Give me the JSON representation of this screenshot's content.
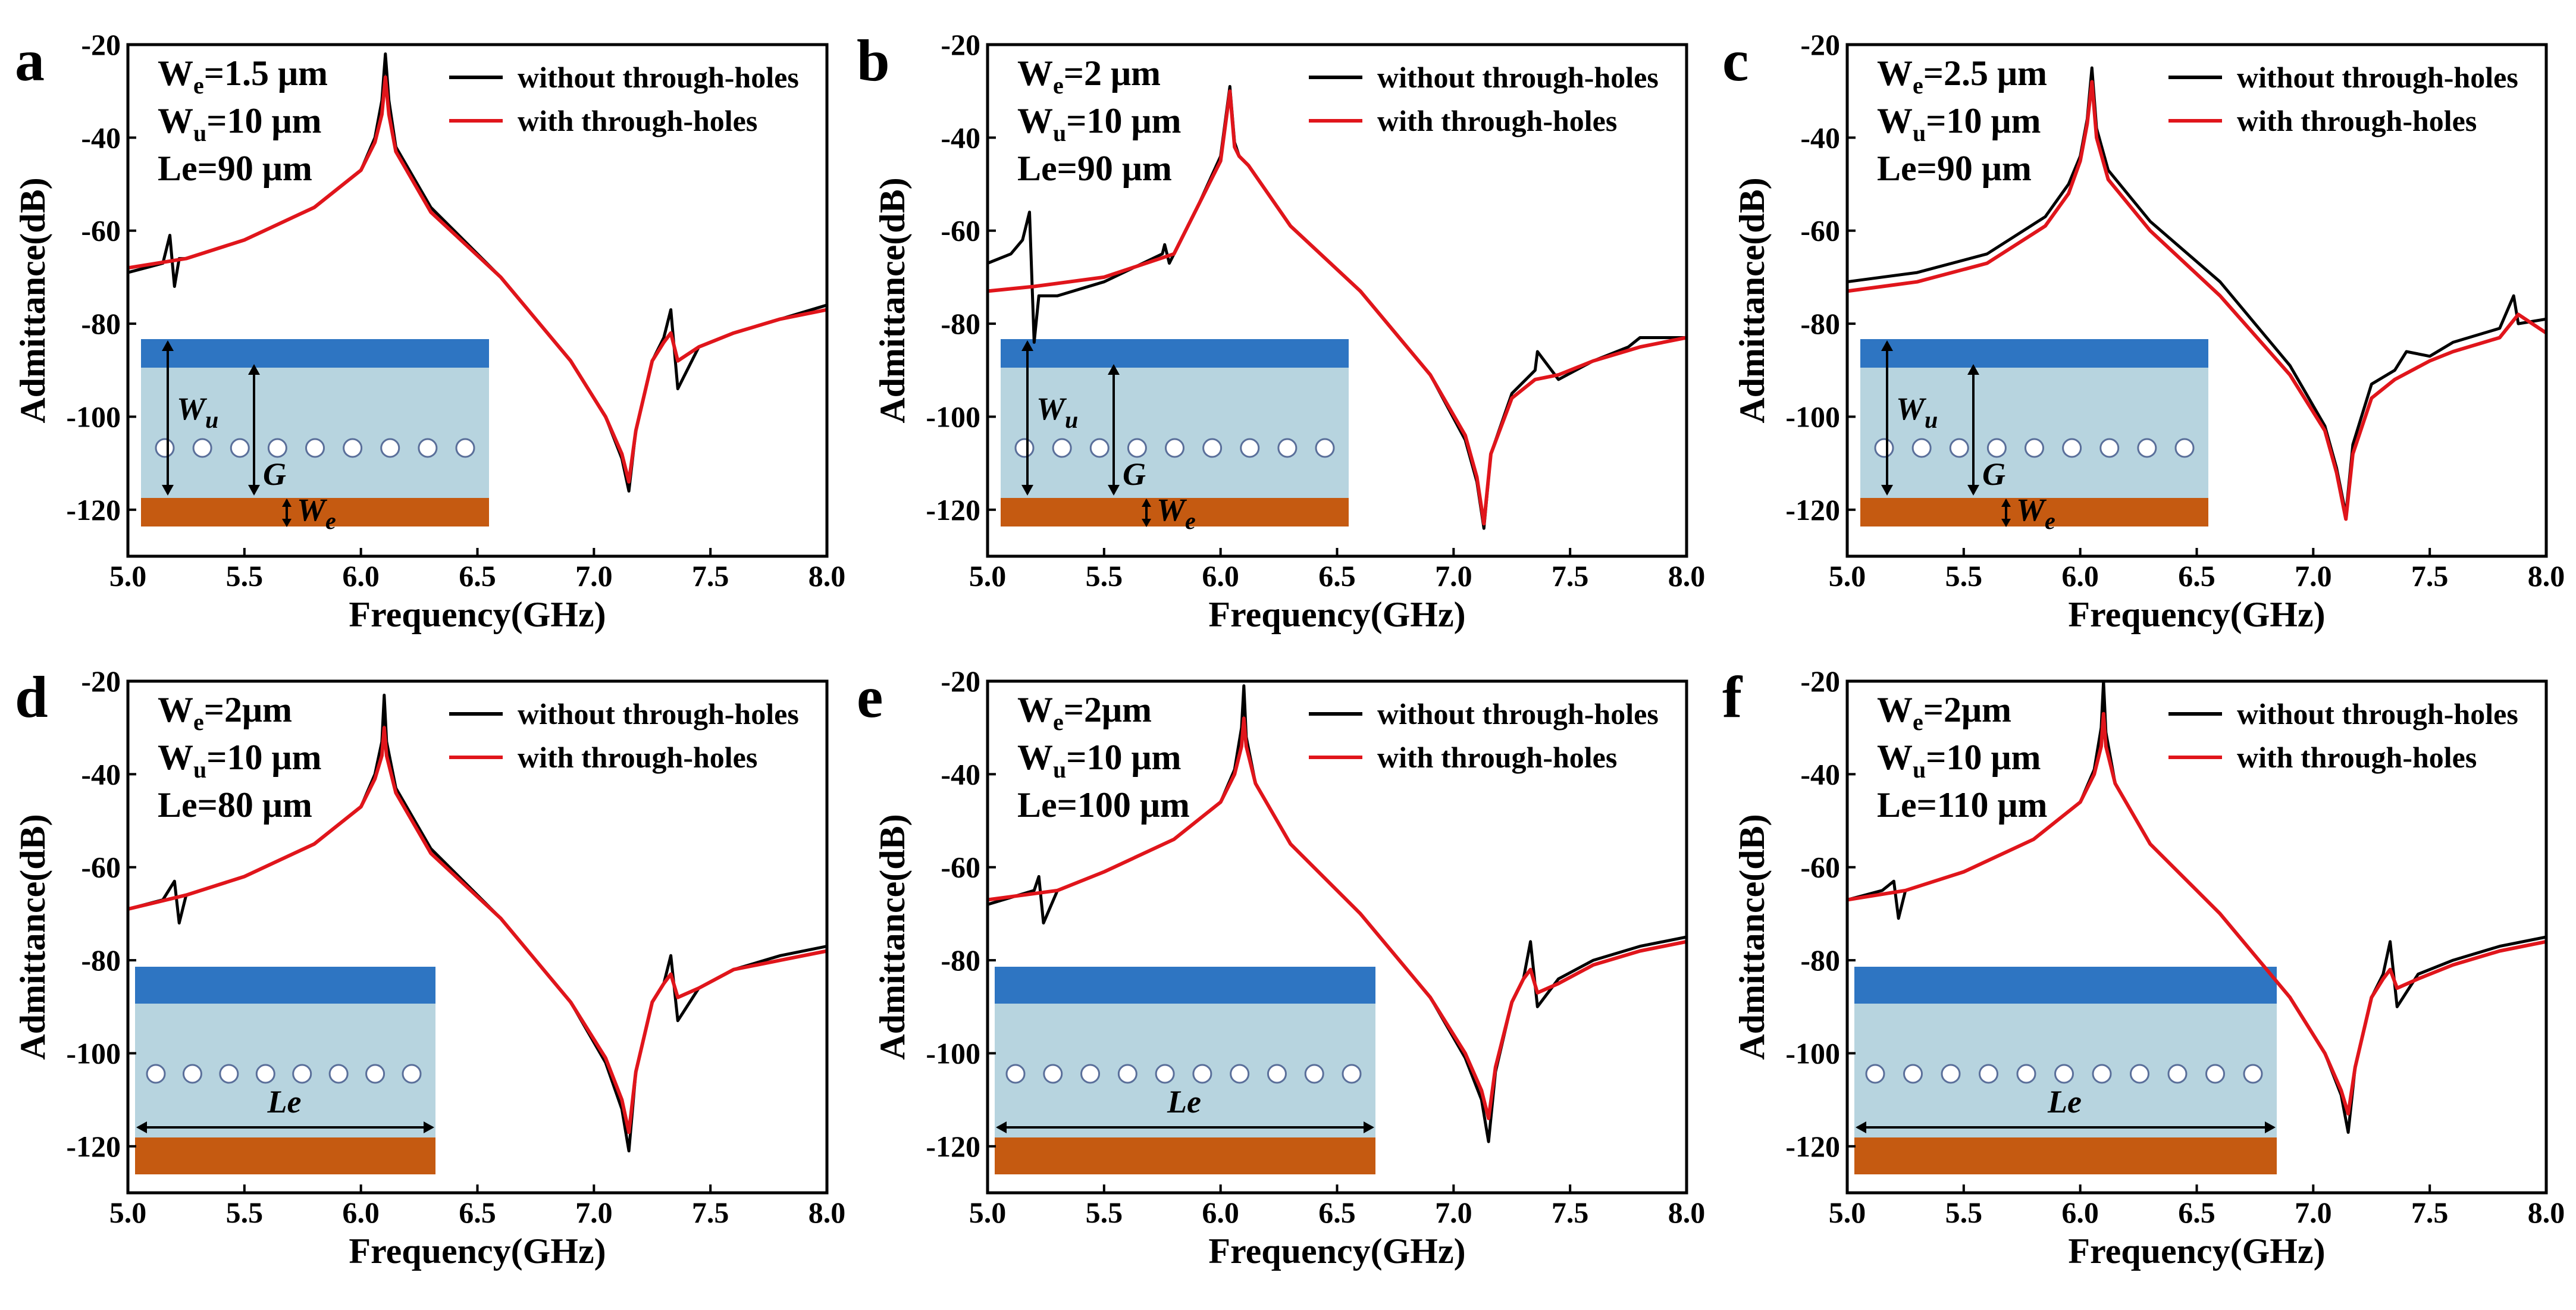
{
  "colors": {
    "without": "#000000",
    "with": "#e0151b",
    "electrode_top": "#2e75c2",
    "substrate": "#b7d4df",
    "electrode_bottom": "#c55a11",
    "hole_stroke": "#5a6f9a"
  },
  "legend": {
    "without": "without through-holes",
    "with": "with through-holes"
  },
  "axis": {
    "xlabel": "Frequency(GHz)",
    "ylabel": "Admittance(dB)",
    "xticks": [
      "5.0",
      "5.5",
      "6.0",
      "6.5",
      "7.0",
      "7.5",
      "8.0"
    ],
    "yticks": [
      "-20",
      "-40",
      "-60",
      "-80",
      "-100",
      "-120"
    ]
  },
  "chart_data": [
    {
      "label": "a",
      "type": "line",
      "params": [
        {
          "name": "W",
          "sub": "e",
          "value": "=1.5 μm"
        },
        {
          "name": "W",
          "sub": "u",
          "value": "=10 μm"
        },
        {
          "name": "Le",
          "sub": "",
          "value": "=90 μm"
        }
      ],
      "xlim": [
        5.0,
        8.0
      ],
      "ylim": [
        -130,
        -20
      ],
      "inset": {
        "kind": "width",
        "wu_label": "W",
        "wu_sub": "u",
        "g_label": "G",
        "we_label": "W",
        "we_sub": "e",
        "holes": 9
      },
      "series": [
        {
          "name": "without through-holes",
          "x": [
            5.0,
            5.15,
            5.18,
            5.2,
            5.22,
            5.25,
            5.5,
            5.8,
            6.0,
            6.06,
            6.09,
            6.105,
            6.12,
            6.15,
            6.3,
            6.6,
            6.9,
            7.05,
            7.12,
            7.15,
            7.18,
            7.25,
            7.3,
            7.33,
            7.36,
            7.45,
            7.6,
            7.8,
            8.0
          ],
          "y": [
            -69,
            -67,
            -61,
            -72,
            -66,
            -66,
            -62,
            -55,
            -47,
            -40,
            -32,
            -22,
            -32,
            -42,
            -55,
            -70,
            -88,
            -100,
            -109,
            -116,
            -103,
            -88,
            -83,
            -77,
            -94,
            -85,
            -82,
            -79,
            -76
          ]
        },
        {
          "name": "with through-holes",
          "x": [
            5.0,
            5.25,
            5.5,
            5.8,
            6.0,
            6.06,
            6.09,
            6.105,
            6.12,
            6.15,
            6.3,
            6.6,
            6.9,
            7.05,
            7.12,
            7.15,
            7.18,
            7.25,
            7.3,
            7.33,
            7.36,
            7.45,
            7.6,
            7.8,
            8.0
          ],
          "y": [
            -68,
            -66,
            -62,
            -55,
            -47,
            -41,
            -35,
            -27,
            -35,
            -43,
            -56,
            -70,
            -88,
            -100,
            -108,
            -114,
            -103,
            -88,
            -84,
            -82,
            -88,
            -85,
            -82,
            -79,
            -77
          ]
        }
      ]
    },
    {
      "label": "b",
      "type": "line",
      "params": [
        {
          "name": "W",
          "sub": "e",
          "value": "=2 μm"
        },
        {
          "name": "W",
          "sub": "u",
          "value": "=10 μm"
        },
        {
          "name": "Le",
          "sub": "",
          "value": "=90 μm"
        }
      ],
      "xlim": [
        5.0,
        8.0
      ],
      "ylim": [
        -130,
        -20
      ],
      "inset": {
        "kind": "width",
        "wu_label": "W",
        "wu_sub": "u",
        "g_label": "G",
        "we_label": "W",
        "we_sub": "e",
        "holes": 9
      },
      "series": [
        {
          "name": "without through-holes",
          "x": [
            5.0,
            5.1,
            5.15,
            5.17,
            5.18,
            5.2,
            5.22,
            5.3,
            5.5,
            5.75,
            5.76,
            5.78,
            5.9,
            6.0,
            6.04,
            6.06,
            6.08,
            6.12,
            6.3,
            6.6,
            6.9,
            7.05,
            7.1,
            7.13,
            7.16,
            7.25,
            7.35,
            7.36,
            7.45,
            7.6,
            7.75,
            7.8,
            8.0
          ],
          "y": [
            -67,
            -65,
            -62,
            -58,
            -56,
            -84,
            -74,
            -74,
            -71,
            -65,
            -63,
            -67,
            -55,
            -44,
            -29,
            -41,
            -44,
            -46,
            -59,
            -73,
            -91,
            -105,
            -114,
            -124,
            -108,
            -95,
            -90,
            -86,
            -92,
            -88,
            -85,
            -83,
            -83
          ]
        },
        {
          "name": "with through-holes",
          "x": [
            5.0,
            5.2,
            5.5,
            5.8,
            5.9,
            6.0,
            6.04,
            6.06,
            6.08,
            6.12,
            6.3,
            6.6,
            6.9,
            7.05,
            7.1,
            7.13,
            7.16,
            7.25,
            7.35,
            7.45,
            7.6,
            7.8,
            8.0
          ],
          "y": [
            -73,
            -72,
            -70,
            -65,
            -55,
            -45,
            -30,
            -42,
            -44,
            -46,
            -59,
            -73,
            -91,
            -104,
            -113,
            -123,
            -108,
            -96,
            -92,
            -91,
            -88,
            -85,
            -83
          ]
        }
      ]
    },
    {
      "label": "c",
      "type": "line",
      "params": [
        {
          "name": "W",
          "sub": "e",
          "value": "=2.5 μm"
        },
        {
          "name": "W",
          "sub": "u",
          "value": "=10 μm"
        },
        {
          "name": "Le",
          "sub": "",
          "value": "=90 μm"
        }
      ],
      "xlim": [
        5.0,
        8.0
      ],
      "ylim": [
        -130,
        -20
      ],
      "inset": {
        "kind": "width",
        "wu_label": "W",
        "wu_sub": "u",
        "g_label": "G",
        "we_label": "W",
        "we_sub": "e",
        "holes": 9
      },
      "series": [
        {
          "name": "without through-holes",
          "x": [
            5.0,
            5.3,
            5.6,
            5.85,
            5.95,
            6.0,
            6.03,
            6.05,
            6.07,
            6.12,
            6.3,
            6.6,
            6.9,
            7.05,
            7.1,
            7.14,
            7.17,
            7.25,
            7.35,
            7.4,
            7.5,
            7.6,
            7.8,
            7.86,
            7.88,
            8.0
          ],
          "y": [
            -71,
            -69,
            -65,
            -57,
            -50,
            -44,
            -36,
            -25,
            -38,
            -47,
            -58,
            -71,
            -89,
            -102,
            -111,
            -121,
            -106,
            -93,
            -90,
            -86,
            -87,
            -84,
            -81,
            -74,
            -80,
            -79
          ]
        },
        {
          "name": "with through-holes",
          "x": [
            5.0,
            5.3,
            5.6,
            5.85,
            5.95,
            6.0,
            6.03,
            6.05,
            6.07,
            6.12,
            6.3,
            6.6,
            6.9,
            7.05,
            7.1,
            7.14,
            7.17,
            7.25,
            7.35,
            7.5,
            7.6,
            7.8,
            7.88,
            8.0
          ],
          "y": [
            -73,
            -71,
            -67,
            -59,
            -52,
            -45,
            -37,
            -28,
            -40,
            -49,
            -60,
            -74,
            -91,
            -103,
            -112,
            -122,
            -108,
            -96,
            -92,
            -88,
            -86,
            -83,
            -78,
            -82
          ]
        }
      ]
    },
    {
      "label": "d",
      "type": "line",
      "params": [
        {
          "name": "W",
          "sub": "e",
          "value": "=2μm"
        },
        {
          "name": "W",
          "sub": "u",
          "value": "=10 μm"
        },
        {
          "name": "Le",
          "sub": "",
          "value": "=80 μm"
        }
      ],
      "xlim": [
        5.0,
        8.0
      ],
      "ylim": [
        -130,
        -20
      ],
      "inset": {
        "kind": "length",
        "le_label": "Le",
        "holes": 8
      },
      "series": [
        {
          "name": "without through-holes",
          "x": [
            5.0,
            5.15,
            5.2,
            5.22,
            5.25,
            5.5,
            5.8,
            6.0,
            6.06,
            6.09,
            6.1,
            6.11,
            6.15,
            6.3,
            6.6,
            6.9,
            7.05,
            7.12,
            7.15,
            7.18,
            7.25,
            7.3,
            7.33,
            7.36,
            7.45,
            7.6,
            7.8,
            8.0
          ],
          "y": [
            -69,
            -67,
            -63,
            -72,
            -66,
            -62,
            -55,
            -47,
            -40,
            -33,
            -23,
            -33,
            -43,
            -56,
            -71,
            -89,
            -102,
            -112,
            -121,
            -104,
            -89,
            -85,
            -79,
            -93,
            -86,
            -82,
            -79,
            -77
          ]
        },
        {
          "name": "with through-holes",
          "x": [
            5.0,
            5.25,
            5.5,
            5.8,
            6.0,
            6.06,
            6.09,
            6.1,
            6.11,
            6.15,
            6.3,
            6.6,
            6.9,
            7.05,
            7.12,
            7.15,
            7.18,
            7.25,
            7.3,
            7.33,
            7.36,
            7.45,
            7.6,
            7.8,
            8.0
          ],
          "y": [
            -69,
            -66,
            -62,
            -55,
            -47,
            -41,
            -36,
            -30,
            -36,
            -44,
            -57,
            -71,
            -89,
            -101,
            -110,
            -117,
            -104,
            -89,
            -85,
            -83,
            -88,
            -86,
            -82,
            -80,
            -78
          ]
        }
      ]
    },
    {
      "label": "e",
      "type": "line",
      "params": [
        {
          "name": "W",
          "sub": "e",
          "value": "=2μm"
        },
        {
          "name": "W",
          "sub": "u",
          "value": "=10 μm"
        },
        {
          "name": "Le",
          "sub": "",
          "value": "=100 μm"
        }
      ],
      "xlim": [
        5.0,
        8.0
      ],
      "ylim": [
        -130,
        -20
      ],
      "inset": {
        "kind": "length",
        "le_label": "Le",
        "holes": 10
      },
      "series": [
        {
          "name": "without through-holes",
          "x": [
            5.0,
            5.2,
            5.22,
            5.24,
            5.3,
            5.5,
            5.8,
            6.0,
            6.06,
            6.09,
            6.1,
            6.11,
            6.15,
            6.3,
            6.6,
            6.9,
            7.05,
            7.12,
            7.15,
            7.18,
            7.25,
            7.3,
            7.33,
            7.36,
            7.45,
            7.6,
            7.8,
            8.0
          ],
          "y": [
            -68,
            -65,
            -62,
            -72,
            -65,
            -61,
            -54,
            -46,
            -39,
            -30,
            -21,
            -32,
            -42,
            -55,
            -70,
            -88,
            -101,
            -110,
            -119,
            -104,
            -89,
            -84,
            -76,
            -90,
            -84,
            -80,
            -77,
            -75
          ]
        },
        {
          "name": "with through-holes",
          "x": [
            5.0,
            5.3,
            5.5,
            5.8,
            6.0,
            6.06,
            6.09,
            6.1,
            6.11,
            6.15,
            6.3,
            6.6,
            6.9,
            7.05,
            7.12,
            7.15,
            7.18,
            7.25,
            7.3,
            7.33,
            7.36,
            7.45,
            7.6,
            7.8,
            8.0
          ],
          "y": [
            -67,
            -65,
            -61,
            -54,
            -46,
            -40,
            -34,
            -28,
            -34,
            -42,
            -55,
            -70,
            -88,
            -100,
            -108,
            -114,
            -103,
            -89,
            -84,
            -82,
            -87,
            -85,
            -81,
            -78,
            -76
          ]
        }
      ]
    },
    {
      "label": "f",
      "type": "line",
      "params": [
        {
          "name": "W",
          "sub": "e",
          "value": "=2μm"
        },
        {
          "name": "W",
          "sub": "u",
          "value": "=10 μm"
        },
        {
          "name": "Le",
          "sub": "",
          "value": "=110 μm"
        }
      ],
      "xlim": [
        5.0,
        8.0
      ],
      "ylim": [
        -130,
        -20
      ],
      "inset": {
        "kind": "length",
        "le_label": "Le",
        "holes": 11
      },
      "series": [
        {
          "name": "without through-holes",
          "x": [
            5.0,
            5.15,
            5.2,
            5.22,
            5.25,
            5.5,
            5.8,
            6.0,
            6.06,
            6.09,
            6.1,
            6.11,
            6.15,
            6.3,
            6.6,
            6.9,
            7.05,
            7.12,
            7.15,
            7.18,
            7.25,
            7.3,
            7.33,
            7.36,
            7.45,
            7.6,
            7.8,
            8.0
          ],
          "y": [
            -67,
            -65,
            -63,
            -71,
            -65,
            -61,
            -54,
            -46,
            -39,
            -30,
            -20,
            -31,
            -42,
            -55,
            -70,
            -88,
            -100,
            -109,
            -117,
            -103,
            -88,
            -83,
            -76,
            -90,
            -83,
            -80,
            -77,
            -75
          ]
        },
        {
          "name": "with through-holes",
          "x": [
            5.0,
            5.25,
            5.5,
            5.8,
            6.0,
            6.06,
            6.09,
            6.1,
            6.11,
            6.15,
            6.3,
            6.6,
            6.9,
            7.05,
            7.12,
            7.15,
            7.18,
            7.25,
            7.3,
            7.33,
            7.36,
            7.45,
            7.6,
            7.8,
            8.0
          ],
          "y": [
            -67,
            -65,
            -61,
            -54,
            -46,
            -40,
            -34,
            -27,
            -34,
            -42,
            -55,
            -70,
            -88,
            -100,
            -108,
            -113,
            -103,
            -88,
            -84,
            -82,
            -86,
            -84,
            -81,
            -78,
            -76
          ]
        }
      ]
    }
  ]
}
